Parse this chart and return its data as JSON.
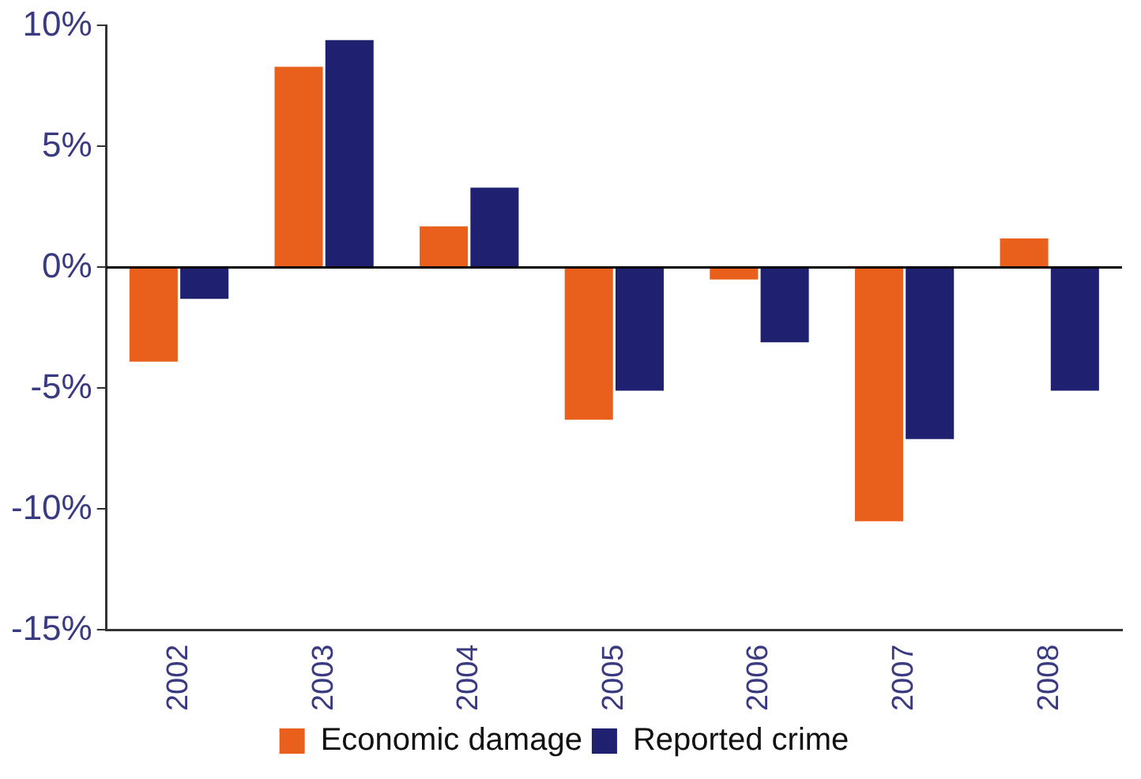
{
  "chart_data": {
    "type": "bar",
    "categories": [
      "2002",
      "2003",
      "2004",
      "2005",
      "2006",
      "2007",
      "2008"
    ],
    "series": [
      {
        "name": "Economic damage",
        "color": "#e8601c",
        "values": [
          -3.9,
          8.3,
          1.7,
          -6.3,
          -0.5,
          -10.5,
          1.2
        ]
      },
      {
        "name": "Reported crime",
        "color": "#1f2070",
        "values": [
          -1.3,
          9.4,
          3.3,
          -5.1,
          -3.1,
          -7.1,
          -5.1
        ]
      }
    ],
    "ylim": [
      -15,
      10
    ],
    "yticks": [
      {
        "value": -15,
        "label": "-15%"
      },
      {
        "value": -10,
        "label": "-10%"
      },
      {
        "value": -5,
        "label": "-5%"
      },
      {
        "value": 0,
        "label": "0%"
      },
      {
        "value": 5,
        "label": "5%"
      },
      {
        "value": 10,
        "label": "10%"
      }
    ],
    "ref_lines": [
      {
        "axis": "y",
        "value": 0,
        "color": "#000000"
      }
    ],
    "grid": false,
    "legend": "bottom"
  }
}
